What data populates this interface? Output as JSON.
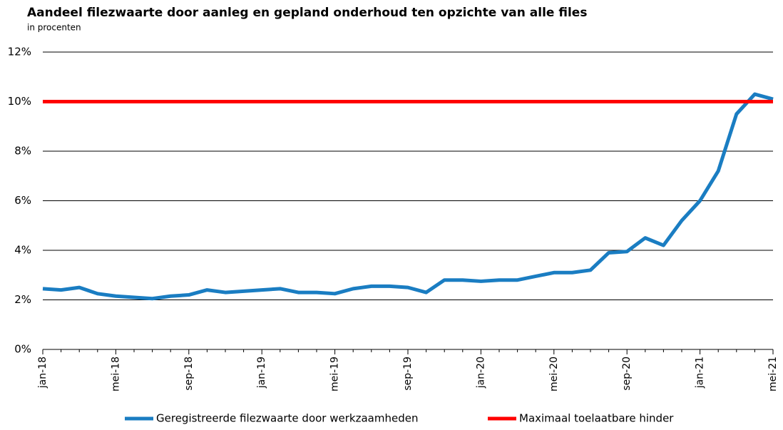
{
  "chart_data": {
    "type": "line",
    "title": "Aandeel filezwaarte door aanleg en gepland onderhoud ten opzichte van alle files",
    "subtitle": "in procenten",
    "categories": [
      "jan-18",
      null,
      null,
      null,
      "mei-18",
      null,
      null,
      null,
      "sep-18",
      null,
      null,
      null,
      "jan-19",
      null,
      null,
      null,
      "mei-19",
      null,
      null,
      null,
      "sep-19",
      null,
      null,
      null,
      "jan-20",
      null,
      null,
      null,
      "mei-20",
      null,
      null,
      null,
      "sep-20",
      null,
      null,
      null,
      "jan-21",
      null,
      null,
      null,
      "mei-21"
    ],
    "series": [
      {
        "name": "Geregistreerde filezwaarte door werkzaamheden",
        "color": "#1a7dc2",
        "values": [
          2.45,
          2.4,
          2.5,
          2.25,
          2.15,
          2.1,
          2.05,
          2.15,
          2.2,
          2.4,
          2.3,
          2.35,
          2.4,
          2.45,
          2.3,
          2.3,
          2.25,
          2.45,
          2.55,
          2.55,
          2.5,
          2.3,
          2.8,
          2.8,
          2.75,
          2.8,
          2.8,
          2.95,
          3.1,
          3.1,
          3.2,
          3.9,
          3.95,
          4.5,
          4.2,
          5.2,
          6.0,
          7.2,
          9.5,
          10.3,
          10.1
        ]
      },
      {
        "name": "Maximaal toelaatbare hinder",
        "color": "#ff0000",
        "values": [
          10,
          10,
          10,
          10,
          10,
          10,
          10,
          10,
          10,
          10,
          10,
          10,
          10,
          10,
          10,
          10,
          10,
          10,
          10,
          10,
          10,
          10,
          10,
          10,
          10,
          10,
          10,
          10,
          10,
          10,
          10,
          10,
          10,
          10,
          10,
          10,
          10,
          10,
          10,
          10,
          10
        ]
      }
    ],
    "ylim": [
      0,
      12
    ],
    "yticks": [
      {
        "value": 0,
        "label": "0%"
      },
      {
        "value": 2,
        "label": "2%"
      },
      {
        "value": 4,
        "label": "4%"
      },
      {
        "value": 6,
        "label": "6%"
      },
      {
        "value": 8,
        "label": "8%"
      },
      {
        "value": 10,
        "label": "10%"
      },
      {
        "value": 12,
        "label": "12%"
      }
    ],
    "grid": true
  }
}
